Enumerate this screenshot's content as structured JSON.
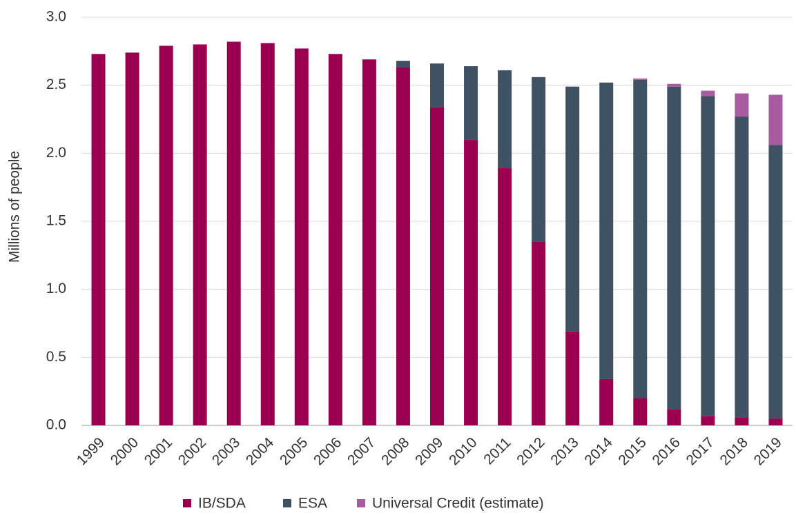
{
  "chart_data": {
    "type": "stacked_bar",
    "y_label": "Millions of people",
    "categories": [
      "1999",
      "2000",
      "2001",
      "2002",
      "2003",
      "2004",
      "2005",
      "2006",
      "2007",
      "2008",
      "2009",
      "2010",
      "2011",
      "2012",
      "2013",
      "2014",
      "2015",
      "2016",
      "2017",
      "2018",
      "2019"
    ],
    "series": [
      {
        "name": "IB/SDA",
        "color": "#9b0050",
        "values": [
          2.73,
          2.74,
          2.79,
          2.8,
          2.82,
          2.81,
          2.77,
          2.73,
          2.69,
          2.63,
          2.34,
          2.1,
          1.89,
          1.35,
          0.69,
          0.34,
          0.2,
          0.12,
          0.07,
          0.06,
          0.05
        ]
      },
      {
        "name": "ESA",
        "color": "#3f5263",
        "values": [
          0,
          0,
          0,
          0,
          0,
          0,
          0,
          0,
          0,
          0.05,
          0.32,
          0.54,
          0.72,
          1.21,
          1.8,
          2.18,
          2.34,
          2.37,
          2.35,
          2.21,
          2.01
        ]
      },
      {
        "name": "Universal Credit (estimate)",
        "color": "#a85c9f",
        "values": [
          0,
          0,
          0,
          0,
          0,
          0,
          0,
          0,
          0,
          0,
          0,
          0,
          0,
          0,
          0,
          0,
          0.01,
          0.02,
          0.04,
          0.17,
          0.37
        ]
      }
    ],
    "ylim": [
      0,
      3
    ],
    "yticks": [
      {
        "value": 0,
        "label": "0.0"
      },
      0.5,
      {
        "value": 1,
        "label": "1.0"
      },
      1.5,
      {
        "value": 2,
        "label": "2.0"
      },
      2.5,
      {
        "value": 3,
        "label": "3.0"
      }
    ],
    "grid": true,
    "legend": "bottom"
  }
}
